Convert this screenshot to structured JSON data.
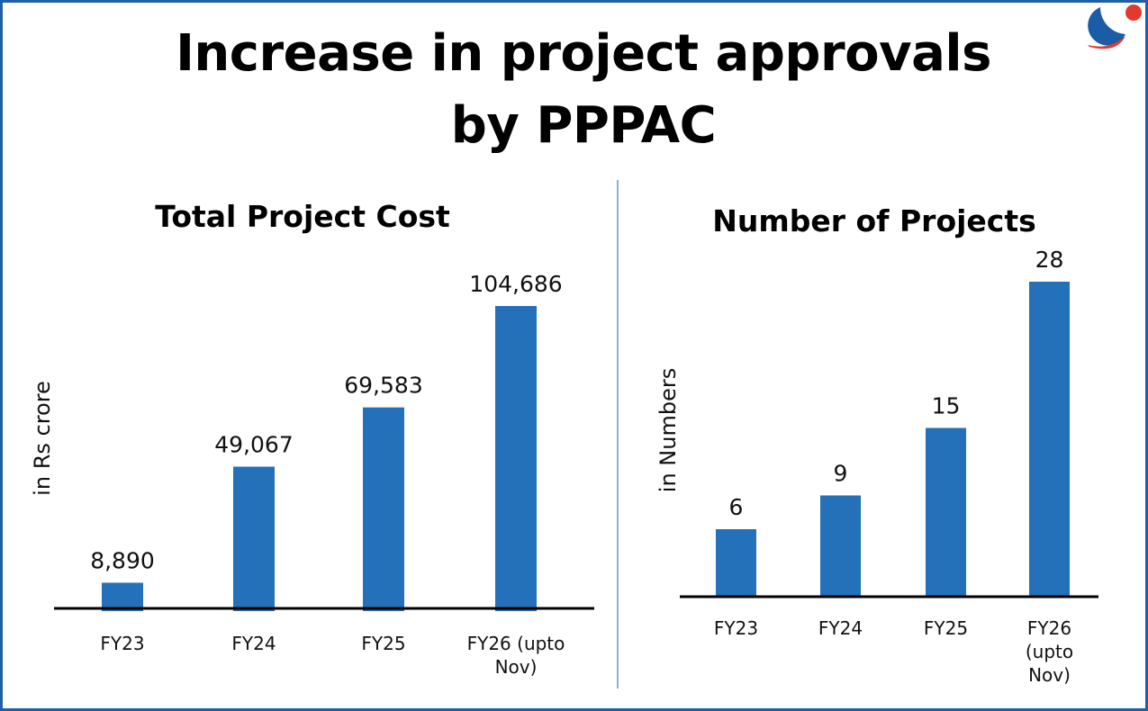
{
  "title_lines": [
    "Increase in project approvals",
    "by PPPAC"
  ],
  "colors": {
    "bar": "#2471b9",
    "border": "#1f5fa8",
    "logo_blue": "#1a5da6",
    "logo_red": "#e23a2e"
  },
  "logo_icon": "globe-swoosh-logo",
  "chart_data": [
    {
      "type": "bar",
      "title": "Total Project Cost",
      "ylabel": "in Rs crore",
      "categories": [
        [
          "FY23"
        ],
        [
          "FY24"
        ],
        [
          "FY25"
        ],
        [
          "FY26 (upto",
          "Nov)"
        ]
      ],
      "values": [
        8890,
        49067,
        69583,
        104686
      ],
      "value_labels": [
        "8,890",
        "49,067",
        "69,583",
        "104,686"
      ],
      "grid": false
    },
    {
      "type": "bar",
      "title": "Number of Projects",
      "ylabel": "in Numbers",
      "categories": [
        [
          "FY23"
        ],
        [
          "FY24"
        ],
        [
          "FY25"
        ],
        [
          "FY26",
          "(upto",
          "Nov)"
        ]
      ],
      "values": [
        6,
        9,
        15,
        28
      ],
      "value_labels": [
        "6",
        "9",
        "15",
        "28"
      ],
      "grid": false
    }
  ]
}
